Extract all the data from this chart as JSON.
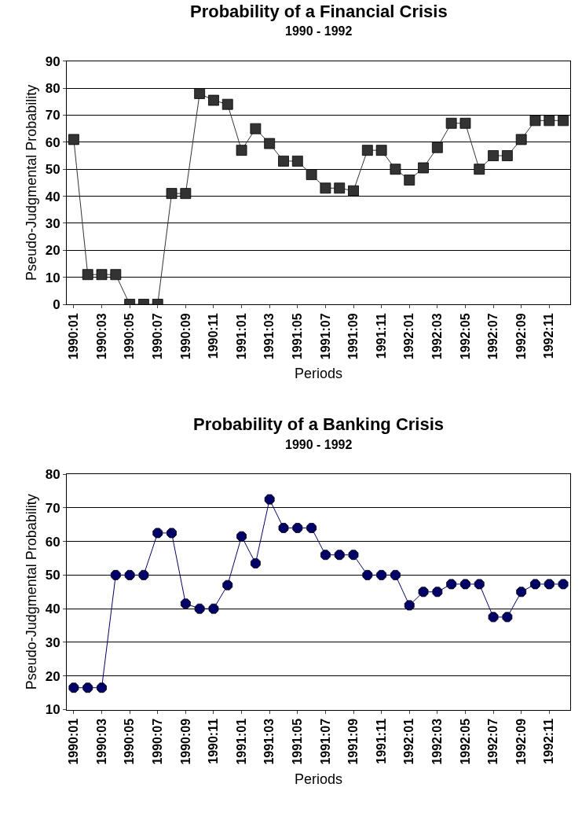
{
  "chart_data": [
    {
      "type": "line",
      "title": "Probability of a Financial Crisis",
      "subtitle": "1990 - 1992",
      "xlabel": "Periods",
      "ylabel": "Pseudo-Judgmental Probability",
      "categories": [
        "1990:01",
        null,
        "1990:03",
        null,
        "1990:05",
        null,
        "1990:07",
        null,
        "1990:09",
        null,
        "1990:11",
        null,
        "1991:01",
        null,
        "1991:03",
        null,
        "1991:05",
        null,
        "1991:07",
        null,
        "1991:09",
        null,
        "1991:11",
        null,
        "1992:01",
        null,
        "1992:03",
        null,
        "1992:05",
        null,
        "1992:07",
        null,
        "1992:09",
        null,
        "1992:11",
        null
      ],
      "series": [
        {
          "color": "#333333",
          "values": [
            61,
            11,
            11,
            11,
            0,
            0,
            0,
            41,
            41,
            78,
            75.5,
            74,
            57,
            65,
            59.5,
            53,
            53,
            48,
            43,
            43,
            42,
            57,
            57,
            50,
            46,
            50.5,
            58,
            67,
            67,
            50,
            55,
            55,
            61,
            68,
            68,
            68
          ]
        }
      ],
      "ylim": [
        0,
        90
      ],
      "yticks": [
        0,
        10,
        20,
        30,
        40,
        50,
        60,
        70,
        80,
        90
      ],
      "grid": "y",
      "marker": "square",
      "line_style": "solid"
    },
    {
      "type": "line",
      "title": "Probability of a Banking Crisis",
      "subtitle": "1990 - 1992",
      "xlabel": "Periods",
      "ylabel": "Pseudo-Judgmental Probability",
      "categories": [
        "1990:01",
        null,
        "1990:03",
        null,
        "1990:05",
        null,
        "1990:07",
        null,
        "1990:09",
        null,
        "1990:11",
        null,
        "1991:01",
        null,
        "1991:03",
        null,
        "1991:05",
        null,
        "1991:07",
        null,
        "1991:09",
        null,
        "1991:11",
        null,
        "1992:01",
        null,
        "1992:03",
        null,
        "1992:05",
        null,
        "1992:07",
        null,
        "1992:09",
        null,
        "1992:11",
        null
      ],
      "series": [
        {
          "color": "#000066",
          "values": [
            16.5,
            16.5,
            16.5,
            50,
            50,
            50,
            62.5,
            62.5,
            41.5,
            40,
            40,
            47,
            61.5,
            53.5,
            72.5,
            64,
            64,
            64,
            56,
            56,
            56,
            50,
            50,
            50,
            41,
            45,
            45,
            47.3,
            47.3,
            47.3,
            37.5,
            37.5,
            45,
            47.3,
            47.3,
            47.3
          ]
        }
      ],
      "ylim": [
        10,
        80
      ],
      "yticks": [
        10,
        20,
        30,
        40,
        50,
        60,
        70,
        80
      ],
      "grid": "y",
      "marker": "circle",
      "line_style": "solid"
    }
  ]
}
